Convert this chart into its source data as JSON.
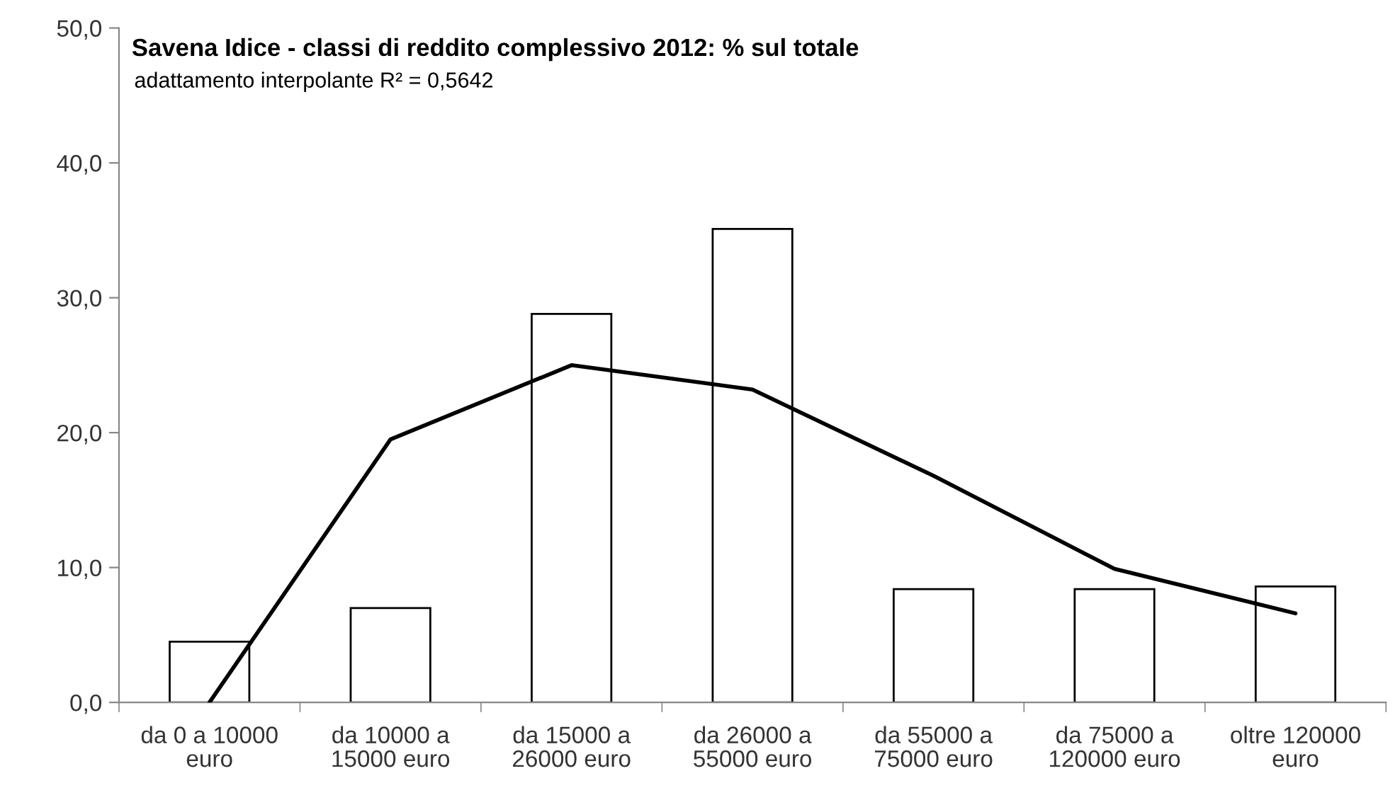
{
  "chart_data": {
    "type": "bar",
    "title": "Savena Idice - classi di reddito complessivo 2012: % sul totale",
    "subtitle": "adattamento interpolante R² = 0,5642",
    "categories": [
      "da 0 a 10000 euro",
      "da 10000 a 15000 euro",
      "da 15000 a 26000 euro",
      "da 26000 a 55000 euro",
      "da 55000 a 75000 euro",
      "da 75000 a 120000 euro",
      "oltre 120000 euro"
    ],
    "series": [
      {
        "color": "#ffffff",
        "values": [
          4.5,
          7.0,
          28.8,
          35.1,
          8.4,
          8.4,
          8.6
        ]
      },
      {
        "type": "line",
        "color": "#000000",
        "values": [
          0,
          19.5,
          25.0,
          23.2,
          16.8,
          9.9,
          6.6
        ]
      }
    ],
    "ylim": [
      0,
      50
    ],
    "yticks": [
      {
        "value": 0,
        "label": "0,0"
      },
      {
        "value": 10,
        "label": "10,0"
      },
      {
        "value": 20,
        "label": "20,0"
      },
      {
        "value": 30,
        "label": "30,0"
      },
      {
        "value": 40,
        "label": "40,0"
      },
      {
        "value": 50,
        "label": "50,0"
      }
    ],
    "grid": false,
    "legend": false
  }
}
